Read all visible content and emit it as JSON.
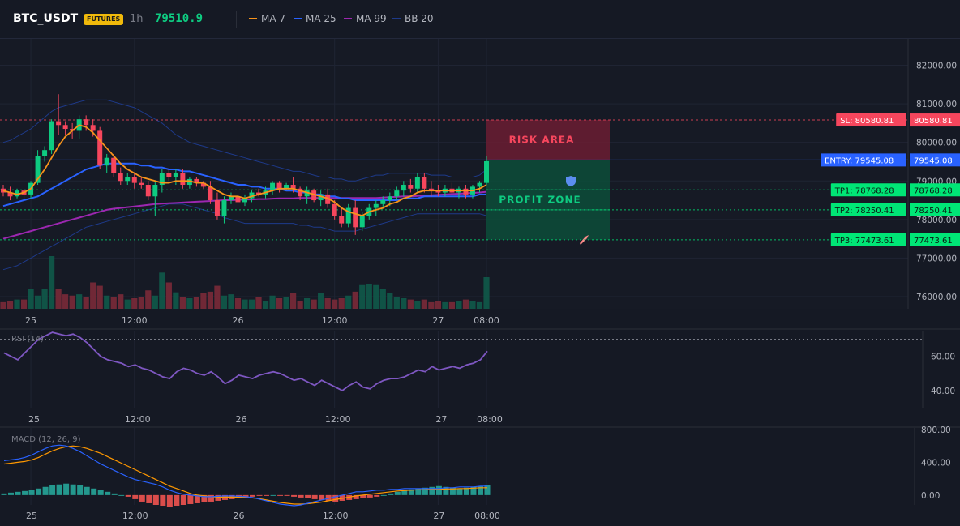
{
  "header": {
    "symbol": "BTC_USDT",
    "badge": "FUTURES",
    "timeframe": "1h",
    "last_price": "79510.9",
    "indicators": [
      {
        "label": "MA 7",
        "color": "#f7931a"
      },
      {
        "label": "MA 25",
        "color": "#2962ff"
      },
      {
        "label": "MA 99",
        "color": "#9c27b0"
      },
      {
        "label": "BB 20",
        "color": "#1e3a8a"
      }
    ]
  },
  "chart_data": [
    {
      "type": "candlestick",
      "title": "BTC_USDT 1h",
      "ylim": [
        75600,
        82600
      ],
      "yticks": [
        "82000.00",
        "81000.00",
        "80000.00",
        "79000.00",
        "78000.00",
        "77000.00",
        "76000.00"
      ],
      "xticks": [
        "25",
        "12:00",
        "26",
        "12:00",
        "27",
        "08:00"
      ],
      "grid": true,
      "candles": [
        [
          78800,
          78900,
          78600,
          78700
        ],
        [
          78700,
          78850,
          78500,
          78600
        ],
        [
          78600,
          78800,
          78550,
          78750
        ],
        [
          78750,
          78800,
          78500,
          78650
        ],
        [
          78650,
          79000,
          78550,
          78950
        ],
        [
          78950,
          79800,
          78900,
          79650
        ],
        [
          79650,
          79900,
          79500,
          79800
        ],
        [
          79800,
          80600,
          79700,
          80550
        ],
        [
          80550,
          81250,
          80200,
          80450
        ],
        [
          80450,
          80550,
          80200,
          80350
        ],
        [
          80350,
          80500,
          80100,
          80300
        ],
        [
          80300,
          80700,
          80100,
          80600
        ],
        [
          80600,
          80700,
          80300,
          80450
        ],
        [
          80450,
          80600,
          80150,
          80300
        ],
        [
          80300,
          80400,
          79300,
          79400
        ],
        [
          79400,
          79700,
          79200,
          79600
        ],
        [
          79600,
          79700,
          79100,
          79200
        ],
        [
          79200,
          79350,
          78900,
          79000
        ],
        [
          79000,
          79200,
          78900,
          79100
        ],
        [
          79100,
          79200,
          78800,
          78950
        ],
        [
          78950,
          79100,
          78800,
          78900
        ],
        [
          78900,
          79000,
          78500,
          78600
        ],
        [
          78600,
          79000,
          78100,
          78900
        ],
        [
          78900,
          79300,
          78700,
          79200
        ],
        [
          79200,
          79300,
          79000,
          79100
        ],
        [
          79100,
          79300,
          78900,
          79200
        ],
        [
          79200,
          79300,
          78800,
          78900
        ],
        [
          78900,
          79100,
          78800,
          79050
        ],
        [
          79050,
          79100,
          78850,
          78950
        ],
        [
          78950,
          79000,
          78800,
          78850
        ],
        [
          78850,
          79000,
          78400,
          78500
        ],
        [
          78500,
          78700,
          78000,
          78100
        ],
        [
          78100,
          78600,
          77900,
          78500
        ],
        [
          78500,
          78700,
          78400,
          78600
        ],
        [
          78600,
          78750,
          78400,
          78450
        ],
        [
          78450,
          78650,
          78350,
          78550
        ],
        [
          78550,
          78750,
          78450,
          78700
        ],
        [
          78700,
          78800,
          78600,
          78650
        ],
        [
          78650,
          78850,
          78550,
          78750
        ],
        [
          78750,
          79000,
          78650,
          78950
        ],
        [
          78950,
          79000,
          78700,
          78800
        ],
        [
          78800,
          78950,
          78750,
          78900
        ],
        [
          78900,
          79100,
          78700,
          78800
        ],
        [
          78800,
          78850,
          78500,
          78600
        ],
        [
          78600,
          78850,
          78400,
          78750
        ],
        [
          78750,
          78800,
          78450,
          78500
        ],
        [
          78500,
          78750,
          78350,
          78650
        ],
        [
          78650,
          78800,
          78300,
          78400
        ],
        [
          78400,
          78500,
          78000,
          78100
        ],
        [
          78100,
          78300,
          77800,
          77900
        ],
        [
          77900,
          78400,
          77800,
          78300
        ],
        [
          78300,
          78500,
          77600,
          77800
        ],
        [
          77800,
          78200,
          77700,
          78100
        ],
        [
          78100,
          78400,
          78000,
          78300
        ],
        [
          78300,
          78500,
          78100,
          78400
        ],
        [
          78400,
          78600,
          78300,
          78500
        ],
        [
          78500,
          78700,
          78350,
          78600
        ],
        [
          78600,
          78850,
          78500,
          78750
        ],
        [
          78750,
          79000,
          78600,
          78900
        ],
        [
          78900,
          79050,
          78700,
          78800
        ],
        [
          78800,
          79200,
          78700,
          79100
        ],
        [
          79100,
          79200,
          78700,
          78800
        ],
        [
          78800,
          79000,
          78600,
          78750
        ],
        [
          78750,
          78900,
          78600,
          78700
        ],
        [
          78700,
          78900,
          78600,
          78800
        ],
        [
          78800,
          78950,
          78650,
          78700
        ],
        [
          78700,
          78850,
          78550,
          78800
        ],
        [
          78800,
          78900,
          78550,
          78650
        ],
        [
          78650,
          78900,
          78550,
          78850
        ],
        [
          78850,
          79000,
          78700,
          78950
        ],
        [
          78950,
          79650,
          78900,
          79510.9
        ]
      ],
      "ma7": [
        78750,
        78700,
        78650,
        78700,
        78800,
        79050,
        79300,
        79600,
        79900,
        80150,
        80300,
        80450,
        80400,
        80250,
        80050,
        79850,
        79650,
        79450,
        79300,
        79200,
        79100,
        79050,
        79000,
        78950,
        78950,
        79000,
        79000,
        79000,
        78950,
        78950,
        78850,
        78750,
        78650,
        78600,
        78600,
        78550,
        78600,
        78650,
        78700,
        78750,
        78800,
        78800,
        78800,
        78750,
        78700,
        78650,
        78600,
        78550,
        78450,
        78300,
        78200,
        78150,
        78100,
        78200,
        78250,
        78300,
        78400,
        78450,
        78550,
        78600,
        78700,
        78750,
        78750,
        78750,
        78750,
        78750,
        78750,
        78750,
        78750,
        78800,
        78900
      ],
      "ma25": [
        78350,
        78400,
        78450,
        78500,
        78550,
        78600,
        78700,
        78800,
        78900,
        79000,
        79100,
        79200,
        79300,
        79350,
        79400,
        79450,
        79450,
        79450,
        79450,
        79450,
        79400,
        79400,
        79350,
        79350,
        79300,
        79300,
        79250,
        79250,
        79200,
        79150,
        79100,
        79050,
        79000,
        78950,
        78900,
        78900,
        78850,
        78850,
        78800,
        78800,
        78800,
        78750,
        78750,
        78700,
        78700,
        78650,
        78650,
        78600,
        78600,
        78550,
        78550,
        78500,
        78500,
        78500,
        78500,
        78500,
        78500,
        78500,
        78550,
        78550,
        78550,
        78600,
        78600,
        78600,
        78600,
        78600,
        78600,
        78600,
        78600,
        78650,
        78650
      ],
      "ma99": [
        77500,
        77550,
        77600,
        77650,
        77700,
        77750,
        77800,
        77850,
        77900,
        77950,
        78000,
        78050,
        78100,
        78150,
        78200,
        78250,
        78280,
        78300,
        78320,
        78340,
        78360,
        78380,
        78400,
        78410,
        78420,
        78430,
        78440,
        78450,
        78460,
        78470,
        78480,
        78490,
        78500,
        78500,
        78510,
        78520,
        78520,
        78530,
        78530,
        78540,
        78550,
        78550,
        78550,
        78560,
        78560,
        78560,
        78560,
        78560,
        78560,
        78560,
        78560,
        78560,
        78560,
        78560,
        78560,
        78570,
        78580,
        78590,
        78600,
        78600,
        78610,
        78620,
        78630,
        78640,
        78650,
        78660,
        78670,
        78680,
        78690,
        78700,
        78720
      ],
      "bb_upper": [
        80000,
        80050,
        80150,
        80250,
        80350,
        80500,
        80650,
        80800,
        80900,
        80950,
        81000,
        81050,
        81100,
        81100,
        81100,
        81100,
        81050,
        81000,
        80950,
        80900,
        80800,
        80700,
        80600,
        80500,
        80350,
        80200,
        80100,
        80000,
        79950,
        79900,
        79850,
        79800,
        79750,
        79700,
        79650,
        79600,
        79550,
        79500,
        79450,
        79400,
        79350,
        79300,
        79250,
        79250,
        79200,
        79150,
        79100,
        79100,
        79050,
        79050,
        79000,
        79000,
        79050,
        79100,
        79150,
        79150,
        79200,
        79200,
        79200,
        79200,
        79200,
        79200,
        79150,
        79150,
        79150,
        79100,
        79100,
        79100,
        79100,
        79150,
        79300
      ],
      "bb_lower": [
        76700,
        76750,
        76800,
        76900,
        77000,
        77100,
        77200,
        77300,
        77400,
        77500,
        77600,
        77700,
        77800,
        77850,
        77900,
        77950,
        78000,
        78050,
        78100,
        78150,
        78200,
        78250,
        78300,
        78350,
        78400,
        78400,
        78400,
        78350,
        78300,
        78250,
        78200,
        78150,
        78050,
        78000,
        77950,
        77900,
        77900,
        77900,
        77900,
        77900,
        77900,
        77900,
        77900,
        77850,
        77850,
        77800,
        77800,
        77750,
        77700,
        77700,
        77700,
        77700,
        77750,
        77800,
        77850,
        77900,
        77950,
        78000,
        78050,
        78100,
        78150,
        78150,
        78150,
        78150,
        78150,
        78150,
        78150,
        78150,
        78150,
        78150,
        78100
      ],
      "volume": [
        10,
        12,
        14,
        14,
        30,
        20,
        30,
        80,
        30,
        22,
        20,
        22,
        18,
        40,
        35,
        20,
        18,
        22,
        14,
        16,
        18,
        28,
        20,
        55,
        40,
        25,
        18,
        16,
        18,
        24,
        26,
        35,
        20,
        22,
        16,
        14,
        14,
        18,
        12,
        20,
        16,
        18,
        24,
        12,
        16,
        14,
        24,
        16,
        14,
        16,
        20,
        26,
        36,
        38,
        36,
        30,
        24,
        18,
        16,
        14,
        12,
        14,
        10,
        12,
        10,
        10,
        12,
        14,
        12,
        10,
        48
      ]
    },
    {
      "type": "line",
      "title": "RSI (14)",
      "ylim": [
        30,
        75
      ],
      "yticks": [
        "60.00",
        "40.00"
      ],
      "values": [
        62,
        60,
        58,
        62,
        66,
        70,
        72,
        74,
        73,
        72,
        73,
        71,
        68,
        64,
        60,
        58,
        57,
        56,
        54,
        55,
        53,
        52,
        50,
        48,
        47,
        51,
        53,
        52,
        50,
        49,
        51,
        48,
        44,
        46,
        49,
        48,
        47,
        49,
        50,
        51,
        50,
        48,
        46,
        47,
        45,
        43,
        46,
        44,
        42,
        40,
        43,
        45,
        42,
        41,
        44,
        46,
        47,
        47,
        48,
        50,
        52,
        51,
        54,
        52,
        53,
        54,
        53,
        55,
        56,
        58,
        63
      ]
    },
    {
      "type": "bar",
      "title": "MACD (12, 26, 9)",
      "ylim": [
        -120,
        820
      ],
      "yticks": [
        "800.00",
        "400.00",
        "0.00"
      ],
      "histogram": [
        20,
        30,
        40,
        50,
        60,
        80,
        100,
        120,
        130,
        140,
        130,
        120,
        100,
        80,
        60,
        40,
        20,
        0,
        -20,
        -50,
        -80,
        -100,
        -120,
        -130,
        -140,
        -130,
        -120,
        -110,
        -100,
        -90,
        -80,
        -70,
        -60,
        -50,
        -40,
        -30,
        -20,
        -10,
        -5,
        0,
        -5,
        -10,
        -20,
        -30,
        -40,
        -50,
        -60,
        -70,
        -80,
        -70,
        -60,
        -50,
        -40,
        -30,
        -20,
        0,
        20,
        40,
        60,
        70,
        80,
        90,
        100,
        110,
        100,
        90,
        80,
        90,
        100,
        110,
        120
      ],
      "macd": [
        420,
        430,
        440,
        460,
        490,
        530,
        570,
        600,
        610,
        600,
        570,
        530,
        480,
        430,
        380,
        340,
        300,
        260,
        220,
        190,
        170,
        150,
        130,
        100,
        60,
        30,
        10,
        0,
        -10,
        -20,
        -20,
        -15,
        -10,
        -10,
        -15,
        -20,
        -30,
        -50,
        -70,
        -90,
        -110,
        -120,
        -130,
        -120,
        -100,
        -80,
        -60,
        -40,
        -20,
        0,
        20,
        40,
        40,
        50,
        60,
        60,
        70,
        70,
        80,
        80,
        80,
        80,
        80,
        80,
        90,
        90,
        100,
        100,
        100,
        110,
        110
      ],
      "signal": [
        380,
        390,
        400,
        410,
        430,
        460,
        500,
        540,
        570,
        590,
        600,
        590,
        570,
        540,
        510,
        470,
        430,
        390,
        350,
        310,
        270,
        230,
        190,
        150,
        110,
        80,
        50,
        20,
        0,
        -10,
        -20,
        -25,
        -25,
        -25,
        -25,
        -30,
        -35,
        -45,
        -60,
        -75,
        -90,
        -100,
        -110,
        -110,
        -105,
        -95,
        -85,
        -70,
        -55,
        -40,
        -25,
        -10,
        0,
        10,
        20,
        30,
        40,
        50,
        55,
        60,
        65,
        65,
        70,
        70,
        75,
        75,
        80,
        80,
        85,
        90,
        90
      ]
    }
  ],
  "trade": {
    "sl": {
      "label": "SL: 80580.81",
      "price_tag": "80580.81",
      "value": 80580.81
    },
    "entry": {
      "label": "ENTRY: 79545.08",
      "price_tag": "79545.08",
      "value": 79545.08
    },
    "tp1": {
      "label": "TP1: 78768.28",
      "price_tag": "78768.28",
      "value": 78768.28
    },
    "tp2": {
      "label": "TP2: 78250.41",
      "price_tag": "78250.41",
      "value": 78250.41
    },
    "tp3": {
      "label": "TP3: 77473.61",
      "price_tag": "77473.61",
      "value": 77473.61
    },
    "risk_label": "RISK AREA",
    "profit_label": "PROFIT ZONE"
  },
  "colors": {
    "up": "#0ecb81",
    "down": "#f6465d",
    "entry": "#2962ff",
    "sl": "#f6465d",
    "tp": "#00e676",
    "rsi": "#7e57c2",
    "macd_line": "#2962ff",
    "signal_line": "#ff9800"
  }
}
